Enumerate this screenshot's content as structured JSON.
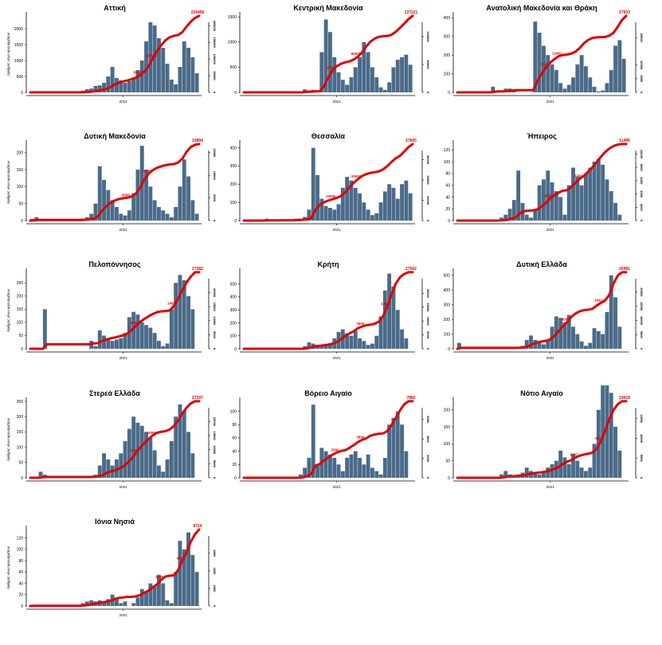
{
  "chart_data": [
    {
      "type": "bar+line",
      "title": "Αττική",
      "ylabel": "Αριθμός νέων κρουσμάτων",
      "xtick": "2021",
      "xtick_index": 22,
      "yticks": [
        0,
        500,
        1000,
        1500,
        2000
      ],
      "ymax": 2400,
      "y2ticks": [
        0,
        50000,
        100000,
        150000,
        200000
      ],
      "total": 229456,
      "annotations": [
        50000,
        100000
      ],
      "bars": [
        0,
        0,
        0,
        0,
        0,
        0,
        0,
        0,
        0,
        0,
        0,
        0,
        50,
        100,
        120,
        200,
        220,
        300,
        500,
        800,
        450,
        380,
        300,
        350,
        450,
        700,
        1000,
        1600,
        2200,
        2100,
        1700,
        1400,
        900,
        400,
        250,
        800,
        1600,
        1400,
        1100,
        600
      ]
    },
    {
      "type": "bar+line",
      "title": "Κεντρική Μακεδονία",
      "ylabel": "",
      "xtick": "2021",
      "xtick_index": 22,
      "yticks": [
        0,
        500,
        1000,
        1500
      ],
      "ymax": 1520,
      "y2ticks": [
        0,
        50000,
        100000
      ],
      "total": 137221,
      "annotations": [
        30000,
        60000
      ],
      "bars": [
        0,
        0,
        0,
        0,
        0,
        0,
        0,
        0,
        0,
        0,
        0,
        0,
        0,
        20,
        60,
        40,
        50,
        30,
        800,
        1450,
        1200,
        700,
        400,
        250,
        150,
        300,
        500,
        700,
        1000,
        800,
        500,
        300,
        100,
        50,
        200,
        500,
        650,
        700,
        750,
        550
      ]
    },
    {
      "type": "bar+line",
      "title": "Ανατολική Μακεδονία και Θράκη",
      "ylabel": "",
      "xtick": "2021",
      "xtick_index": 22,
      "yticks": [
        0,
        100,
        200,
        300,
        400
      ],
      "ymax": 410,
      "y2ticks": [
        0,
        5000,
        10000,
        20000
      ],
      "total": 27933,
      "annotations": [
        7000,
        12951
      ],
      "bars": [
        0,
        0,
        0,
        0,
        0,
        0,
        0,
        0,
        30,
        10,
        0,
        20,
        20,
        10,
        0,
        0,
        0,
        0,
        380,
        320,
        250,
        200,
        150,
        120,
        50,
        20,
        40,
        80,
        150,
        200,
        140,
        80,
        30,
        5,
        10,
        50,
        120,
        250,
        280,
        180
      ]
    },
    {
      "type": "bar+line",
      "title": "Δυτική Μακεδονία",
      "ylabel": "Αριθμός νέων κρουσμάτων",
      "xtick": "2021",
      "xtick_index": 22,
      "yticks": [
        0,
        50,
        100,
        150,
        200
      ],
      "ymax": 225,
      "y2ticks": [
        0,
        5000,
        10000,
        15000
      ],
      "total": 16894,
      "annotations": [
        5000,
        10000
      ],
      "bars": [
        5,
        10,
        0,
        0,
        0,
        0,
        0,
        0,
        0,
        0,
        0,
        0,
        5,
        10,
        20,
        50,
        160,
        120,
        90,
        60,
        40,
        20,
        15,
        30,
        80,
        150,
        220,
        150,
        100,
        60,
        40,
        30,
        20,
        10,
        40,
        100,
        180,
        130,
        60,
        20
      ]
    },
    {
      "type": "bar+line",
      "title": "Θεσσαλία",
      "ylabel": "",
      "xtick": "2021",
      "xtick_index": 22,
      "yticks": [
        0,
        100,
        200,
        300,
        400
      ],
      "ymax": 420,
      "y2ticks": [
        0,
        10000,
        20000,
        30000
      ],
      "total": 37665,
      "annotations": [
        10000,
        20000
      ],
      "bars": [
        0,
        0,
        0,
        0,
        0,
        10,
        0,
        0,
        5,
        0,
        0,
        5,
        10,
        10,
        20,
        60,
        400,
        250,
        120,
        80,
        70,
        60,
        90,
        180,
        240,
        220,
        180,
        150,
        100,
        60,
        30,
        40,
        100,
        160,
        200,
        180,
        120,
        200,
        220,
        150
      ]
    },
    {
      "type": "bar+line",
      "title": "Ήπειρος",
      "ylabel": "",
      "xtick": "2021",
      "xtick_index": 22,
      "yticks": [
        0,
        20,
        40,
        60,
        80,
        100,
        120
      ],
      "ymax": 130,
      "y2ticks": [
        0,
        2000,
        4000,
        6000,
        8000,
        10000
      ],
      "total": 11496,
      "annotations": [
        3000,
        5700
      ],
      "bars": [
        0,
        0,
        0,
        0,
        0,
        0,
        0,
        0,
        0,
        2,
        5,
        10,
        20,
        35,
        85,
        30,
        10,
        5,
        20,
        60,
        70,
        85,
        65,
        50,
        40,
        10,
        60,
        90,
        75,
        60,
        80,
        90,
        100,
        105,
        95,
        70,
        50,
        30,
        10,
        0
      ]
    },
    {
      "type": "bar+line",
      "title": "Πελοπόννησος",
      "ylabel": "Αριθμός νέων κρουσμάτων",
      "xtick": "2021",
      "xtick_index": 22,
      "yticks": [
        0,
        50,
        100,
        150,
        200,
        250
      ],
      "ymax": 290,
      "y2ticks": [
        0,
        5000,
        10000,
        15000,
        20000
      ],
      "total": 27282,
      "annotations": [
        8000,
        14509
      ],
      "bars": [
        0,
        0,
        0,
        150,
        0,
        0,
        0,
        0,
        0,
        0,
        0,
        0,
        0,
        0,
        30,
        10,
        70,
        50,
        40,
        30,
        35,
        40,
        60,
        120,
        140,
        130,
        100,
        90,
        80,
        60,
        30,
        10,
        20,
        150,
        250,
        280,
        260,
        200,
        150,
        0
      ]
    },
    {
      "type": "bar+line",
      "title": "Κρήτη",
      "ylabel": "",
      "xtick": "2021",
      "xtick_index": 22,
      "yticks": [
        0,
        100,
        200,
        300,
        400,
        500
      ],
      "ymax": 590,
      "y2ticks": [
        0,
        5000,
        10000,
        15000,
        20000
      ],
      "total": 27562,
      "annotations": [
        7800,
        13500
      ],
      "bars": [
        0,
        0,
        0,
        0,
        0,
        0,
        0,
        0,
        0,
        0,
        0,
        0,
        0,
        0,
        20,
        50,
        40,
        30,
        20,
        30,
        40,
        80,
        130,
        150,
        120,
        100,
        140,
        80,
        60,
        30,
        40,
        100,
        250,
        450,
        580,
        480,
        300,
        150,
        80,
        0
      ]
    },
    {
      "type": "bar+line",
      "title": "Δυτική Ελλάδα",
      "ylabel": "",
      "xtick": "2021",
      "xtick_index": 22,
      "yticks": [
        0,
        100,
        200,
        300,
        400,
        500
      ],
      "ymax": 520,
      "y2ticks": [
        0,
        5000,
        10000,
        15000,
        20000
      ],
      "total": 26981,
      "annotations": [
        8000,
        15412
      ],
      "bars": [
        40,
        0,
        0,
        0,
        0,
        0,
        0,
        0,
        0,
        0,
        0,
        0,
        0,
        0,
        10,
        20,
        60,
        90,
        60,
        40,
        30,
        60,
        150,
        220,
        210,
        180,
        230,
        150,
        100,
        50,
        20,
        40,
        140,
        120,
        100,
        250,
        500,
        350,
        150,
        0
      ]
    },
    {
      "type": "bar+line",
      "title": "Στερεά Ελλάδα",
      "ylabel": "Αριθμός νέων κρουσμάτων",
      "xtick": "2021",
      "xtick_index": 22,
      "yticks": [
        0,
        50,
        100,
        150,
        200,
        250
      ],
      "ymax": 250,
      "y2ticks": [
        0,
        5000,
        10000,
        15000,
        20000
      ],
      "total": 27207,
      "annotations": [
        7000,
        14000
      ],
      "bars": [
        0,
        0,
        20,
        10,
        0,
        0,
        0,
        0,
        0,
        0,
        0,
        0,
        0,
        0,
        5,
        10,
        40,
        80,
        60,
        40,
        60,
        80,
        120,
        160,
        200,
        180,
        170,
        150,
        130,
        90,
        40,
        20,
        60,
        120,
        200,
        240,
        220,
        150,
        80,
        0
      ]
    },
    {
      "type": "bar+line",
      "title": "Βόρειο Αιγαίο",
      "ylabel": "",
      "xtick": "2021",
      "xtick_index": 22,
      "yticks": [
        0,
        20,
        40,
        60,
        80,
        100
      ],
      "ymax": 115,
      "y2ticks": [
        0,
        2000,
        4000,
        6000
      ],
      "total": 7882,
      "annotations": [
        2500,
        3800
      ],
      "bars": [
        0,
        0,
        0,
        0,
        0,
        0,
        0,
        0,
        0,
        0,
        0,
        0,
        0,
        5,
        15,
        30,
        110,
        20,
        45,
        40,
        35,
        30,
        20,
        10,
        30,
        35,
        40,
        30,
        20,
        35,
        15,
        10,
        5,
        30,
        80,
        90,
        100,
        80,
        40,
        0
      ]
    },
    {
      "type": "bar+line",
      "title": "Νότιο Αιγαίο",
      "ylabel": "",
      "xtick": "2021",
      "xtick_index": 22,
      "yticks": [
        0,
        50,
        100,
        150,
        200
      ],
      "ymax": 225,
      "y2ticks": [
        0,
        5000,
        10000,
        15000
      ],
      "total": 19418,
      "annotations": [
        4507,
        8500
      ],
      "bars": [
        0,
        0,
        0,
        0,
        0,
        0,
        0,
        0,
        0,
        0,
        10,
        20,
        10,
        5,
        10,
        15,
        30,
        20,
        15,
        10,
        20,
        30,
        40,
        50,
        80,
        60,
        40,
        70,
        50,
        30,
        20,
        30,
        100,
        200,
        280,
        300,
        250,
        150,
        80,
        0
      ]
    },
    {
      "type": "bar+line",
      "title": "Ιόνια Νησιά",
      "ylabel": "Αριθμός νέων κρουσμάτων",
      "xtick": "2021",
      "xtick_index": 22,
      "yticks": [
        0,
        20,
        40,
        60,
        80,
        100,
        120
      ],
      "ymax": 135,
      "y2ticks": [
        0,
        2000,
        4000,
        6000,
        8000
      ],
      "total": 8724,
      "annotations": [
        2800,
        4800
      ],
      "bars": [
        2,
        0,
        0,
        0,
        0,
        0,
        0,
        0,
        0,
        0,
        0,
        0,
        5,
        8,
        10,
        8,
        10,
        8,
        12,
        20,
        15,
        5,
        8,
        0,
        5,
        15,
        30,
        25,
        40,
        35,
        55,
        40,
        10,
        5,
        60,
        115,
        100,
        130,
        90,
        60
      ]
    }
  ],
  "colors": {
    "bars": "#4a6b89",
    "cumulative_line": "#e00000",
    "annotation_text": "#e00000"
  }
}
